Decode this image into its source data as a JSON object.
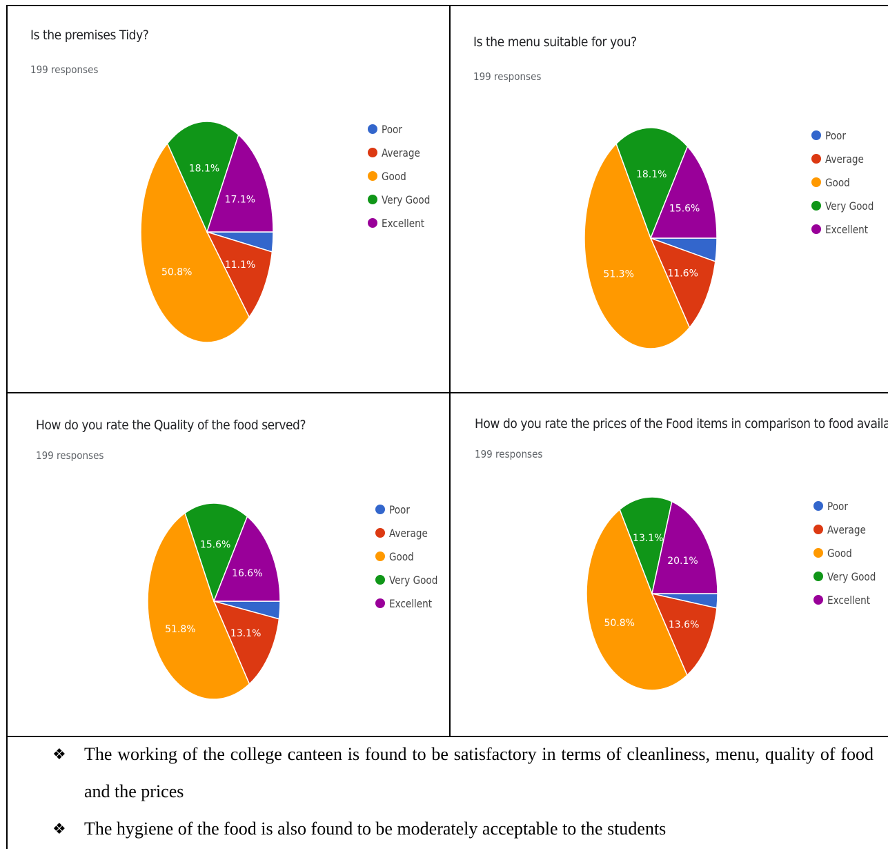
{
  "legend_labels": [
    "Poor",
    "Average",
    "Good",
    "Very Good",
    "Excellent"
  ],
  "colors": {
    "Poor": "#3366cc",
    "Average": "#dc3912",
    "Good": "#ff9900",
    "Very Good": "#109618",
    "Excellent": "#990099"
  },
  "chart_data": [
    {
      "type": "pie",
      "title": "Is the premises Tidy?",
      "subtitle": "199 responses",
      "categories": [
        "Poor",
        "Average",
        "Good",
        "Very Good",
        "Excellent"
      ],
      "values": [
        2.9,
        11.1,
        50.8,
        18.1,
        17.1
      ],
      "labels": [
        "",
        "11.1%",
        "50.8%",
        "18.1%",
        "17.1%"
      ],
      "legend": "right"
    },
    {
      "type": "pie",
      "title": "Is the menu suitable for you?",
      "subtitle": "199 responses",
      "categories": [
        "Poor",
        "Average",
        "Good",
        "Very Good",
        "Excellent"
      ],
      "values": [
        3.4,
        11.6,
        51.3,
        18.1,
        15.6
      ],
      "labels": [
        "",
        "11.6%",
        "51.3%",
        "18.1%",
        "15.6%"
      ],
      "legend": "right"
    },
    {
      "type": "pie",
      "title": "How do you rate the Quality of the food served?",
      "subtitle": "199 responses",
      "categories": [
        "Poor",
        "Average",
        "Good",
        "Very Good",
        "Excellent"
      ],
      "values": [
        2.9,
        13.1,
        51.8,
        15.6,
        16.6
      ],
      "labels": [
        "",
        "13.1%",
        "51.8%",
        "15.6%",
        "16.6%"
      ],
      "legend": "right"
    },
    {
      "type": "pie",
      "title": "How do you rate the prices of the Food items in comparison to food available",
      "subtitle": "199 responses",
      "categories": [
        "Poor",
        "Average",
        "Good",
        "Very Good",
        "Excellent"
      ],
      "values": [
        2.4,
        13.6,
        50.8,
        13.1,
        20.1
      ],
      "labels": [
        "",
        "13.6%",
        "50.8%",
        "13.1%",
        "20.1%"
      ],
      "legend": "right"
    }
  ],
  "bullets": [
    "The working of the college canteen is found to be satisfactory in terms of cleanliness, menu, quality of food and the prices",
    "The hygiene of the food is also found to be moderately acceptable to the students"
  ],
  "bullet_symbol": "❖"
}
